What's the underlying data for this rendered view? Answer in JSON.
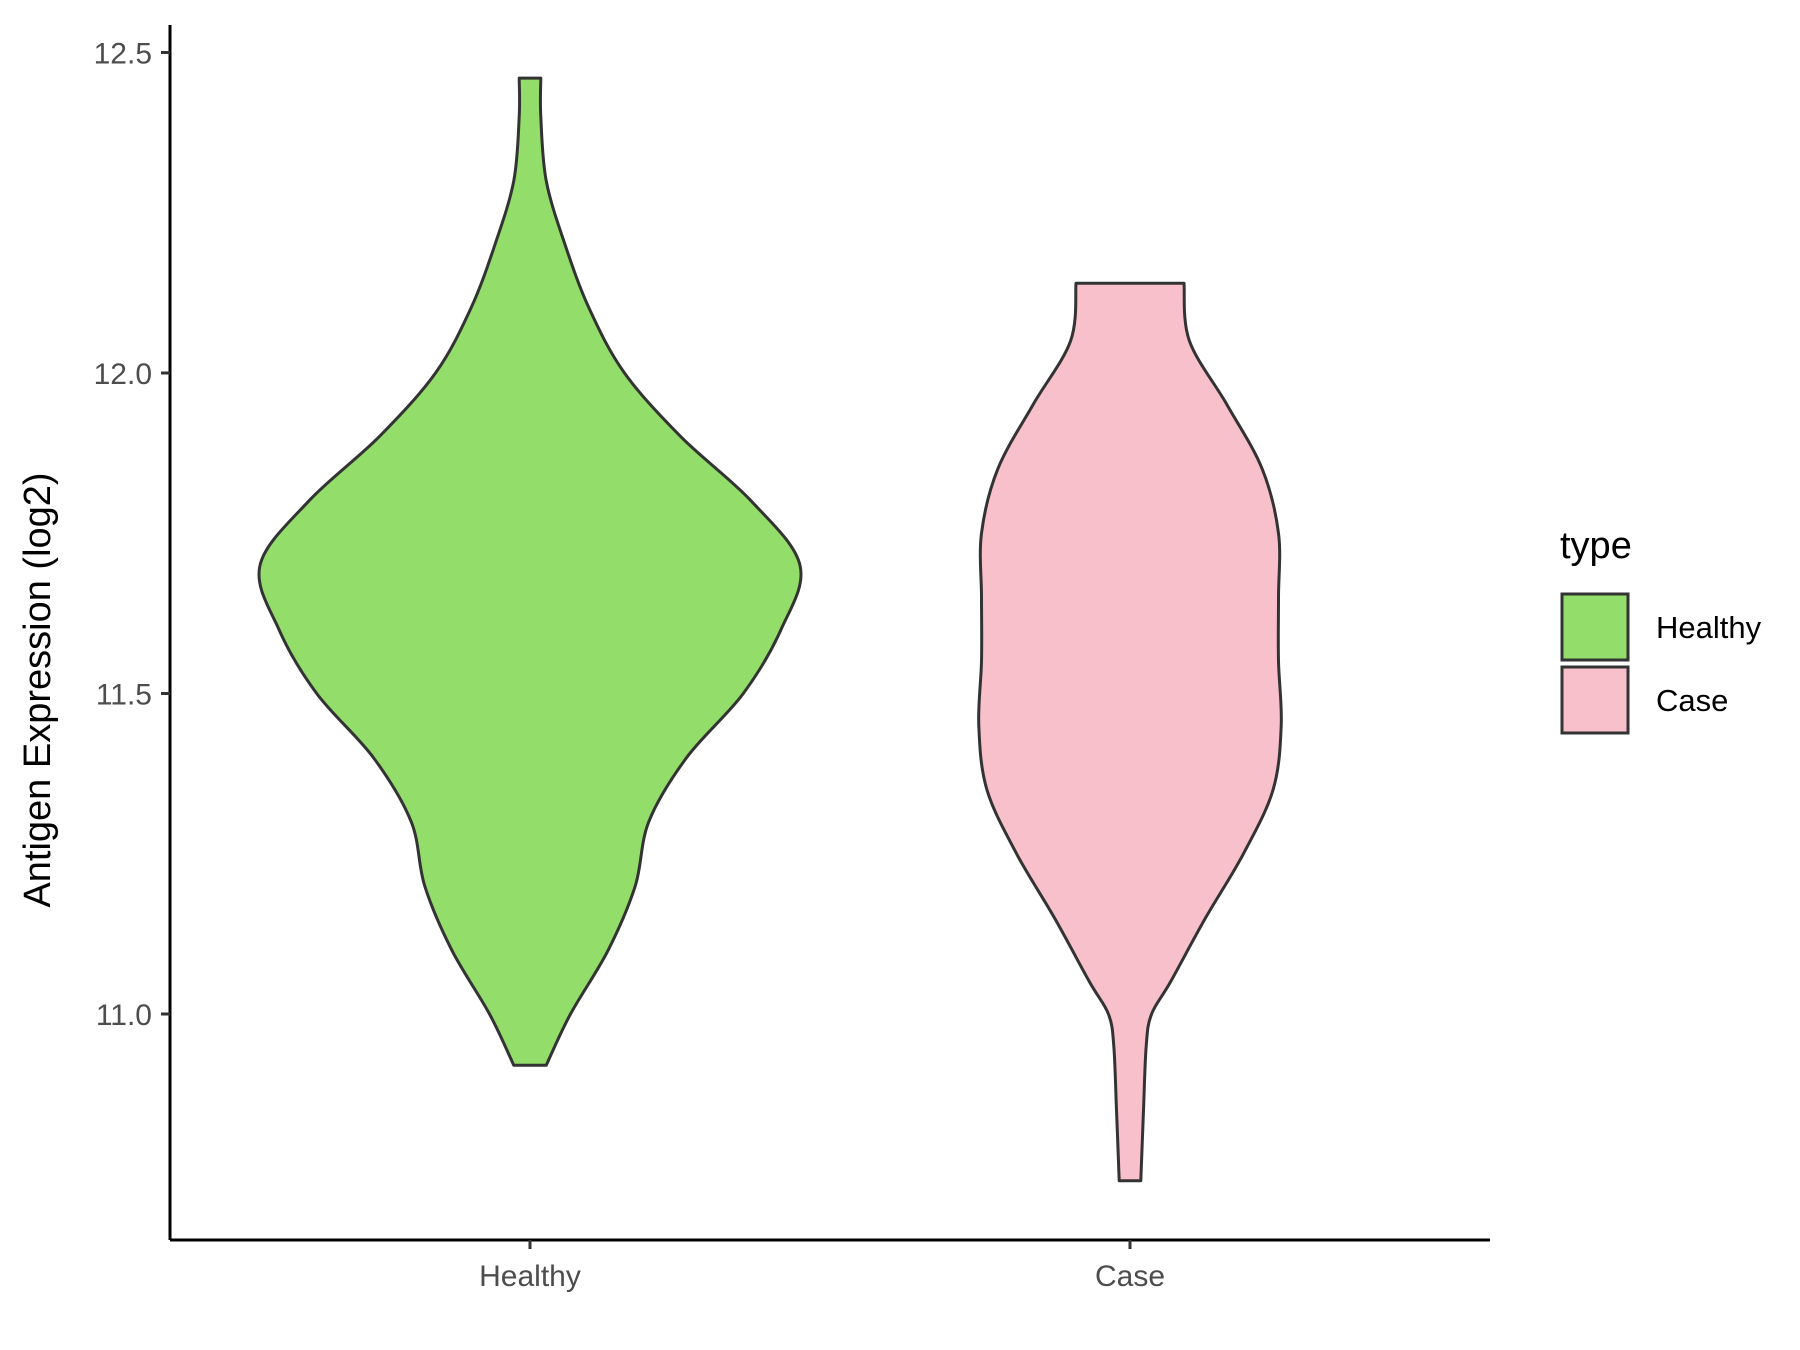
{
  "chart_data": {
    "type": "violin",
    "title": "",
    "xlabel": "",
    "ylabel": "Antigen Expression (log2)",
    "categories": [
      "Healthy",
      "Case"
    ],
    "ylim": [
      10.67,
      12.55
    ],
    "yticks": [
      11.0,
      11.5,
      12.0,
      12.5
    ],
    "ytick_labels": [
      "11.0",
      "11.5",
      "12.0",
      "12.5"
    ],
    "grid": false,
    "legend": {
      "title": "type",
      "position": "right",
      "entries": [
        {
          "label": "Healthy",
          "color": "#93dd6a"
        },
        {
          "label": "Case",
          "color": "#f8c0cb"
        }
      ]
    },
    "series": [
      {
        "category": "Healthy",
        "color": "#93dd6a",
        "min": 10.92,
        "max": 12.46,
        "density": [
          [
            10.92,
            0.06
          ],
          [
            11.0,
            0.15
          ],
          [
            11.1,
            0.29
          ],
          [
            11.2,
            0.39
          ],
          [
            11.3,
            0.44
          ],
          [
            11.4,
            0.58
          ],
          [
            11.5,
            0.79
          ],
          [
            11.6,
            0.93
          ],
          [
            11.7,
            1.0
          ],
          [
            11.8,
            0.82
          ],
          [
            11.9,
            0.56
          ],
          [
            12.0,
            0.35
          ],
          [
            12.1,
            0.22
          ],
          [
            12.2,
            0.13
          ],
          [
            12.3,
            0.06
          ],
          [
            12.4,
            0.04
          ],
          [
            12.46,
            0.04
          ]
        ]
      },
      {
        "category": "Case",
        "color": "#f8c0cb",
        "min": 10.74,
        "max": 12.14,
        "density": [
          [
            10.74,
            0.04
          ],
          [
            10.85,
            0.05
          ],
          [
            10.95,
            0.06
          ],
          [
            11.0,
            0.08
          ],
          [
            11.05,
            0.15
          ],
          [
            11.15,
            0.28
          ],
          [
            11.25,
            0.42
          ],
          [
            11.35,
            0.53
          ],
          [
            11.45,
            0.56
          ],
          [
            11.55,
            0.55
          ],
          [
            11.65,
            0.55
          ],
          [
            11.75,
            0.55
          ],
          [
            11.85,
            0.49
          ],
          [
            11.95,
            0.36
          ],
          [
            12.05,
            0.22
          ],
          [
            12.14,
            0.2
          ]
        ]
      }
    ]
  }
}
